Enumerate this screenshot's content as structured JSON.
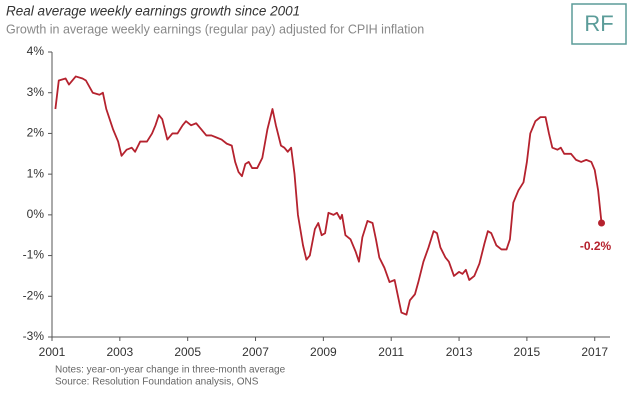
{
  "chart_data": {
    "type": "line",
    "title": "Real average weekly earnings growth since 2001",
    "subtitle": "Growth in average weekly earnings (regular pay) adjusted for CPIH inflation",
    "logo": "RF",
    "notes": [
      "Notes: year-on-year change in three-month average",
      "Source: Resolution Foundation analysis, ONS"
    ],
    "color": "#b5222e",
    "x": [
      2001.1,
      2001.2,
      2001.4,
      2001.5,
      2001.7,
      2001.9,
      2002.0,
      2002.2,
      2002.4,
      2002.5,
      2002.6,
      2002.8,
      2002.95,
      2003.05,
      2003.2,
      2003.35,
      2003.45,
      2003.6,
      2003.8,
      2003.95,
      2004.05,
      2004.15,
      2004.25,
      2004.4,
      2004.55,
      2004.7,
      2004.85,
      2004.95,
      2005.1,
      2005.25,
      2005.4,
      2005.55,
      2005.7,
      2005.85,
      2006.0,
      2006.15,
      2006.3,
      2006.4,
      2006.5,
      2006.6,
      2006.7,
      2006.8,
      2006.9,
      2007.05,
      2007.2,
      2007.35,
      2007.5,
      2007.6,
      2007.75,
      2007.85,
      2007.95,
      2008.05,
      2008.15,
      2008.25,
      2008.4,
      2008.5,
      2008.6,
      2008.75,
      2008.85,
      2008.95,
      2009.05,
      2009.15,
      2009.3,
      2009.4,
      2009.5,
      2009.55,
      2009.65,
      2009.8,
      2009.95,
      2010.05,
      2010.15,
      2010.3,
      2010.45,
      2010.55,
      2010.65,
      2010.8,
      2010.95,
      2011.1,
      2011.2,
      2011.3,
      2011.45,
      2011.55,
      2011.7,
      2011.8,
      2011.95,
      2012.1,
      2012.25,
      2012.35,
      2012.45,
      2012.6,
      2012.7,
      2012.85,
      2013.0,
      2013.1,
      2013.2,
      2013.3,
      2013.45,
      2013.6,
      2013.75,
      2013.85,
      2013.95,
      2014.1,
      2014.25,
      2014.4,
      2014.5,
      2014.6,
      2014.75,
      2014.9,
      2015.0,
      2015.1,
      2015.25,
      2015.4,
      2015.55,
      2015.65,
      2015.75,
      2015.9,
      2016.0,
      2016.1,
      2016.3,
      2016.45,
      2016.6,
      2016.75,
      2016.9,
      2017.0,
      2017.1,
      2017.2
    ],
    "values": [
      2.6,
      3.3,
      3.35,
      3.2,
      3.4,
      3.35,
      3.3,
      3.0,
      2.95,
      3.0,
      2.6,
      2.1,
      1.8,
      1.45,
      1.6,
      1.65,
      1.55,
      1.8,
      1.8,
      2.0,
      2.2,
      2.45,
      2.35,
      1.85,
      2.0,
      2.0,
      2.2,
      2.3,
      2.2,
      2.25,
      2.1,
      1.95,
      1.95,
      1.9,
      1.85,
      1.75,
      1.7,
      1.3,
      1.05,
      0.95,
      1.25,
      1.3,
      1.15,
      1.15,
      1.4,
      2.1,
      2.6,
      2.2,
      1.7,
      1.65,
      1.55,
      1.65,
      1.0,
      0.0,
      -0.75,
      -1.1,
      -1.0,
      -0.35,
      -0.2,
      -0.5,
      -0.45,
      0.05,
      0.0,
      0.05,
      -0.1,
      0.0,
      -0.5,
      -0.6,
      -0.9,
      -1.15,
      -0.55,
      -0.15,
      -0.2,
      -0.6,
      -1.05,
      -1.3,
      -1.65,
      -1.6,
      -2.0,
      -2.4,
      -2.45,
      -2.1,
      -1.95,
      -1.65,
      -1.15,
      -0.8,
      -0.4,
      -0.45,
      -0.8,
      -1.05,
      -1.15,
      -1.5,
      -1.4,
      -1.45,
      -1.35,
      -1.6,
      -1.5,
      -1.2,
      -0.7,
      -0.4,
      -0.45,
      -0.75,
      -0.85,
      -0.85,
      -0.6,
      0.3,
      0.6,
      0.8,
      1.3,
      2.0,
      2.3,
      2.4,
      2.4,
      2.0,
      1.65,
      1.6,
      1.65,
      1.5,
      1.5,
      1.35,
      1.3,
      1.35,
      1.3,
      1.1,
      0.6,
      -0.2
    ],
    "annotations": [
      {
        "x": 2017.2,
        "y": -0.2,
        "text": "-0.2%"
      }
    ],
    "xlim": [
      2001,
      2017.45
    ],
    "xticks": [
      2001,
      2003,
      2005,
      2007,
      2009,
      2011,
      2013,
      2015,
      2017
    ],
    "ylim": [
      -3,
      4
    ],
    "yticks": [
      {
        "value": -3,
        "label": "-3%"
      },
      {
        "value": -2,
        "label": "-2%"
      },
      {
        "value": -1,
        "label": "-1%"
      },
      {
        "value": 0,
        "label": "0%"
      },
      {
        "value": 1,
        "label": "1%"
      },
      {
        "value": 2,
        "label": "2%"
      },
      {
        "value": 3,
        "label": "3%"
      },
      {
        "value": 4,
        "label": "4%"
      }
    ],
    "grid": false
  }
}
